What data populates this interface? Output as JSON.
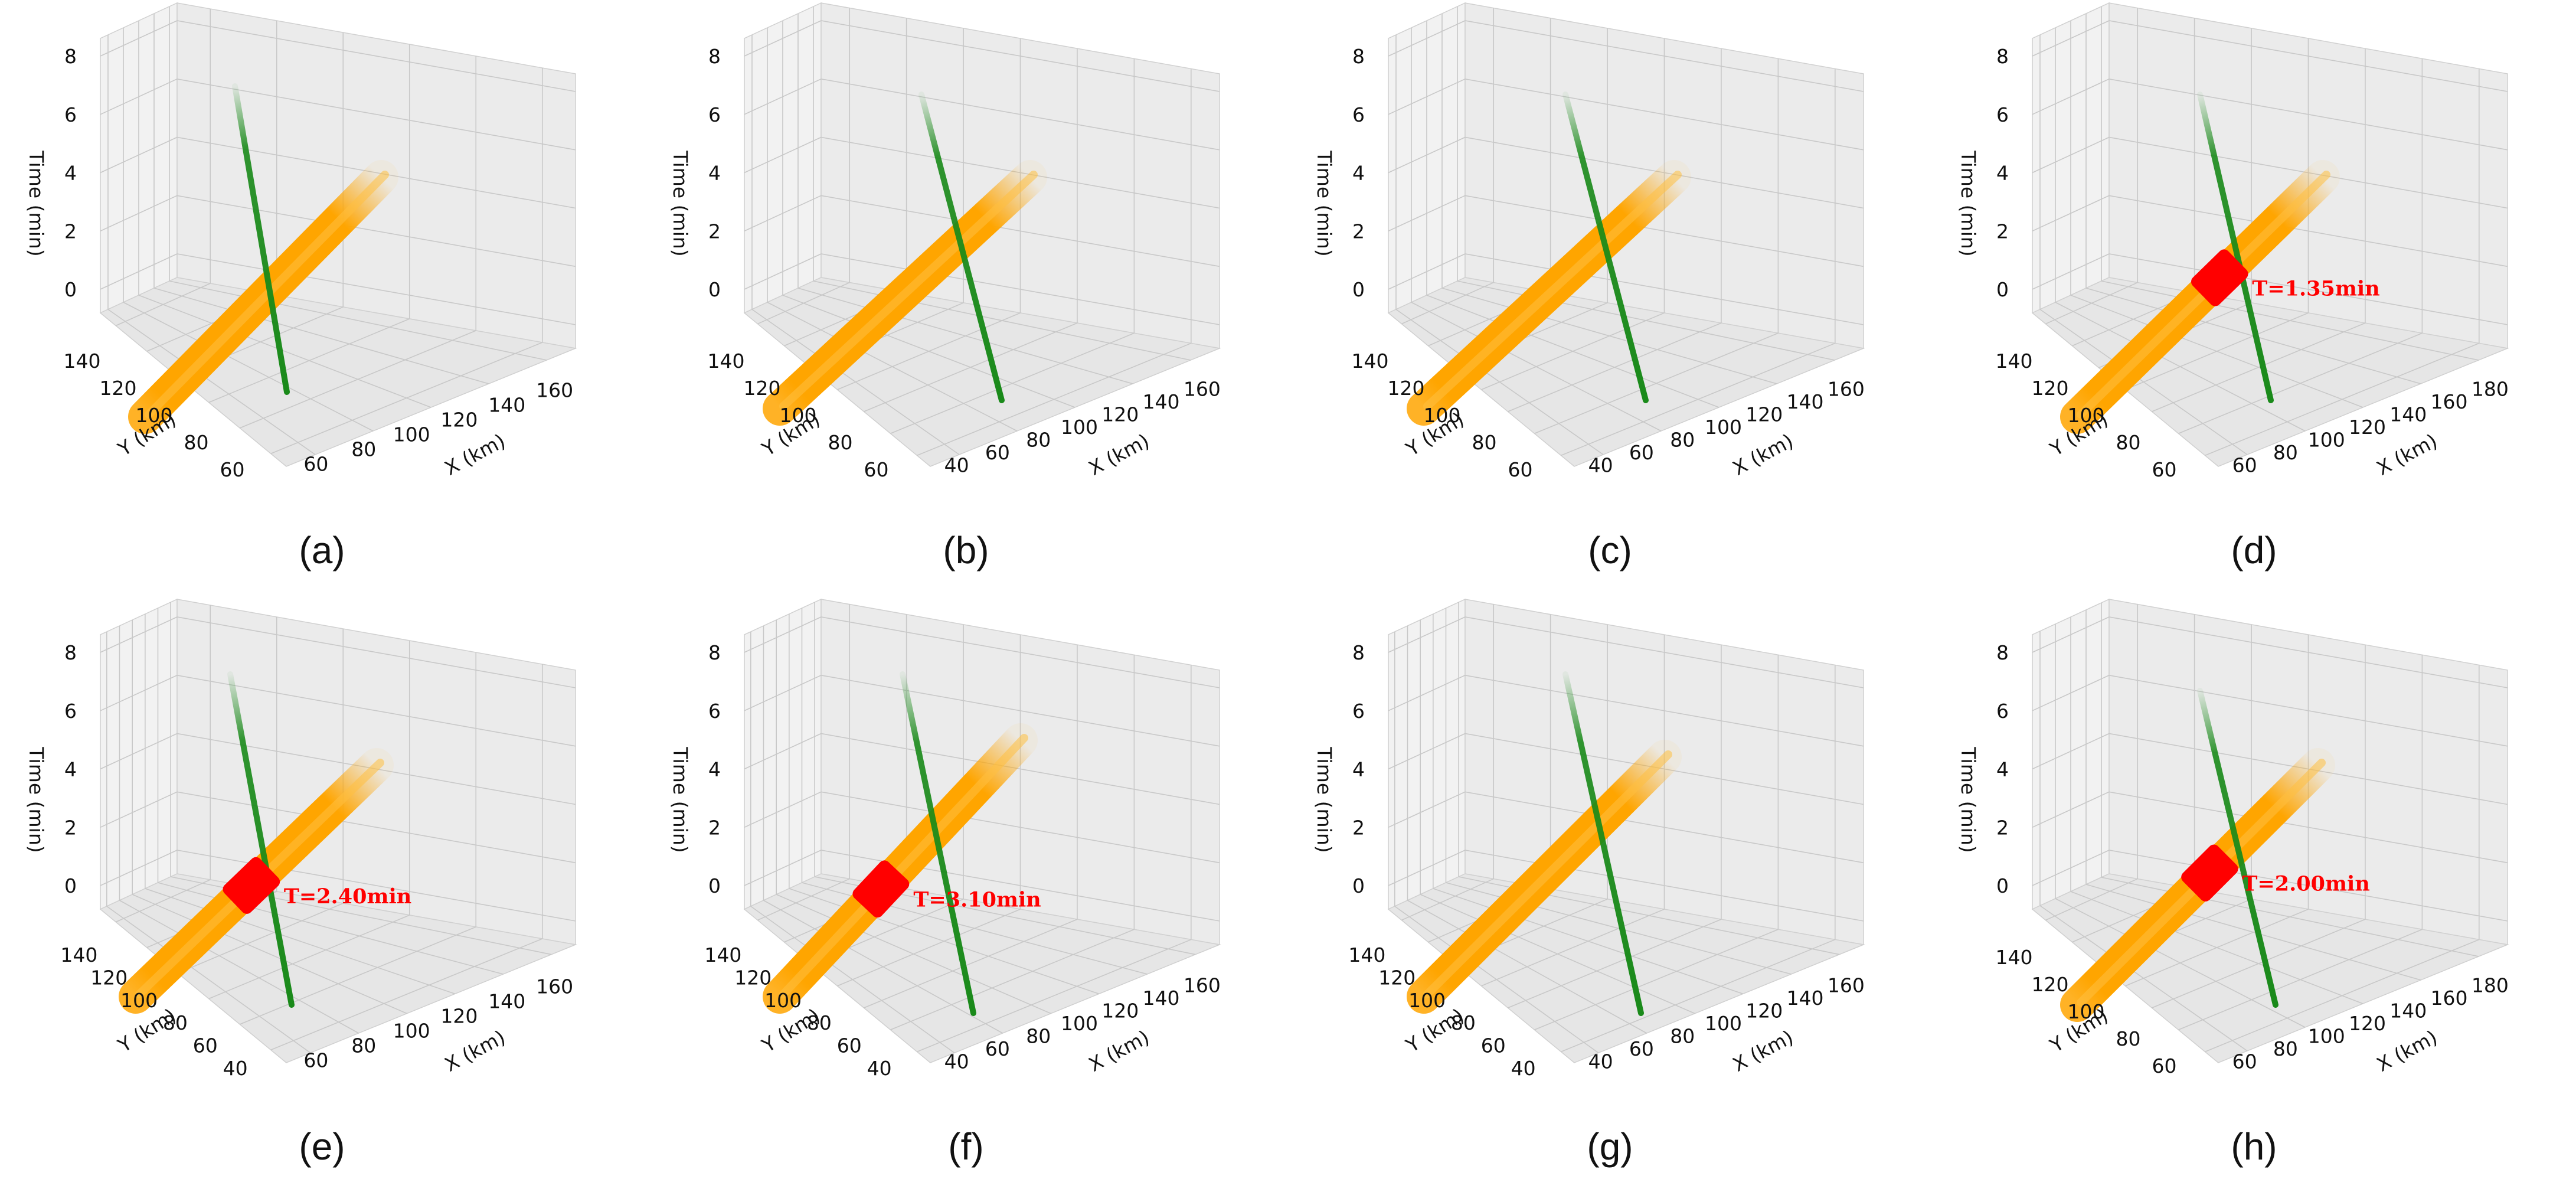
{
  "figure": {
    "title": ""
  },
  "chart_data": [
    {
      "id": "a",
      "type": "3d-trajectory",
      "caption": "(a)",
      "xlabel": "X (km)",
      "ylabel": "Y (km)",
      "zlabel": "Time (min)",
      "xticks": [
        "60",
        "80",
        "100",
        "120",
        "140",
        "160"
      ],
      "yticks": [
        "60",
        "80",
        "100",
        "120",
        "140"
      ],
      "zticks": [
        "0",
        "2",
        "4",
        "6",
        "8"
      ],
      "xlim": [
        50,
        170
      ],
      "ylim": [
        50,
        150
      ],
      "zlim": [
        0,
        8
      ],
      "series": [
        {
          "name": "orange-track",
          "color": "#FFA500",
          "kind": "tube",
          "x0": 0.12,
          "y0": 0.88,
          "x1": 0.62,
          "y1": 0.3
        },
        {
          "name": "green-track",
          "color": "#1a8a1a",
          "kind": "line",
          "x0": 0.31,
          "y0": 0.08,
          "x1": 0.42,
          "y1": 0.82
        }
      ],
      "collision": null
    },
    {
      "id": "b",
      "type": "3d-trajectory",
      "caption": "(b)",
      "xlabel": "X (km)",
      "ylabel": "Y (km)",
      "zlabel": "Time (min)",
      "xticks": [
        "40",
        "60",
        "80",
        "100",
        "120",
        "140",
        "160"
      ],
      "yticks": [
        "60",
        "80",
        "100",
        "120",
        "140"
      ],
      "zticks": [
        "0",
        "2",
        "4",
        "6",
        "8"
      ],
      "xlim": [
        30,
        170
      ],
      "ylim": [
        50,
        150
      ],
      "zlim": [
        0,
        8
      ],
      "series": [
        {
          "name": "orange-track",
          "color": "#FFA500",
          "kind": "tube",
          "x0": 0.1,
          "y0": 0.86,
          "x1": 0.63,
          "y1": 0.3
        },
        {
          "name": "green-track",
          "color": "#1a8a1a",
          "kind": "line",
          "x0": 0.4,
          "y0": 0.1,
          "x1": 0.57,
          "y1": 0.84
        }
      ],
      "collision": null
    },
    {
      "id": "c",
      "type": "3d-trajectory",
      "caption": "(c)",
      "xlabel": "X (km)",
      "ylabel": "Y (km)",
      "zlabel": "Time (min)",
      "xticks": [
        "40",
        "60",
        "80",
        "100",
        "120",
        "140",
        "160"
      ],
      "yticks": [
        "60",
        "80",
        "100",
        "120",
        "140"
      ],
      "zticks": [
        "0",
        "2",
        "4",
        "6",
        "8"
      ],
      "xlim": [
        30,
        170
      ],
      "ylim": [
        50,
        150
      ],
      "zlim": [
        0,
        8
      ],
      "series": [
        {
          "name": "orange-track",
          "color": "#FFA500",
          "kind": "tube",
          "x0": 0.1,
          "y0": 0.86,
          "x1": 0.63,
          "y1": 0.3
        },
        {
          "name": "green-track",
          "color": "#1a8a1a",
          "kind": "line",
          "x0": 0.4,
          "y0": 0.1,
          "x1": 0.57,
          "y1": 0.84
        }
      ],
      "collision": null
    },
    {
      "id": "d",
      "type": "3d-trajectory",
      "caption": "(d)",
      "xlabel": "X (km)",
      "ylabel": "Y (km)",
      "zlabel": "Time (min)",
      "xticks": [
        "60",
        "80",
        "100",
        "120",
        "140",
        "160",
        "180"
      ],
      "yticks": [
        "60",
        "80",
        "100",
        "120",
        "140"
      ],
      "zticks": [
        "0",
        "2",
        "4",
        "6",
        "8"
      ],
      "xlim": [
        50,
        190
      ],
      "ylim": [
        50,
        150
      ],
      "zlim": [
        0,
        8
      ],
      "series": [
        {
          "name": "orange-track",
          "color": "#FFA500",
          "kind": "tube",
          "x0": 0.12,
          "y0": 0.88,
          "x1": 0.64,
          "y1": 0.3
        },
        {
          "name": "green-track",
          "color": "#1a8a1a",
          "kind": "line",
          "x0": 0.38,
          "y0": 0.1,
          "x1": 0.53,
          "y1": 0.84
        }
      ],
      "collision": {
        "label": "T=1.35min",
        "time_min": 1.35,
        "color": "#ff0000",
        "t": 0.58
      }
    },
    {
      "id": "e",
      "type": "3d-trajectory",
      "caption": "(e)",
      "xlabel": "X (km)",
      "ylabel": "Y (km)",
      "zlabel": "Time (min)",
      "xticks": [
        "60",
        "80",
        "100",
        "120",
        "140",
        "160"
      ],
      "yticks": [
        "40",
        "60",
        "80",
        "100",
        "120",
        "140"
      ],
      "zticks": [
        "0",
        "2",
        "4",
        "6",
        "8"
      ],
      "xlim": [
        50,
        170
      ],
      "ylim": [
        30,
        150
      ],
      "zlim": [
        0,
        8
      ],
      "series": [
        {
          "name": "orange-track",
          "color": "#FFA500",
          "kind": "tube",
          "x0": 0.1,
          "y0": 0.84,
          "x1": 0.61,
          "y1": 0.28
        },
        {
          "name": "green-track",
          "color": "#1a8a1a",
          "kind": "line",
          "x0": 0.3,
          "y0": 0.06,
          "x1": 0.43,
          "y1": 0.86
        }
      ],
      "collision": {
        "label": "T=2.40min",
        "time_min": 2.4,
        "color": "#ff0000",
        "t": 0.48
      }
    },
    {
      "id": "f",
      "type": "3d-trajectory",
      "caption": "(f)",
      "xlabel": "X (km)",
      "ylabel": "Y (km)",
      "zlabel": "Time (min)",
      "xticks": [
        "40",
        "60",
        "80",
        "100",
        "120",
        "140",
        "160"
      ],
      "yticks": [
        "40",
        "60",
        "80",
        "100",
        "120",
        "140"
      ],
      "zticks": [
        "0",
        "2",
        "4",
        "6",
        "8"
      ],
      "xlim": [
        30,
        170
      ],
      "ylim": [
        30,
        150
      ],
      "zlim": [
        0,
        8
      ],
      "series": [
        {
          "name": "orange-track",
          "color": "#FFA500",
          "kind": "tube",
          "x0": 0.1,
          "y0": 0.84,
          "x1": 0.61,
          "y1": 0.22
        },
        {
          "name": "green-track",
          "color": "#1a8a1a",
          "kind": "line",
          "x0": 0.36,
          "y0": 0.06,
          "x1": 0.51,
          "y1": 0.88
        }
      ],
      "collision": {
        "label": "T=3.10min",
        "time_min": 3.1,
        "color": "#ff0000",
        "t": 0.42
      }
    },
    {
      "id": "g",
      "type": "3d-trajectory",
      "caption": "(g)",
      "xlabel": "X (km)",
      "ylabel": "Y (km)",
      "zlabel": "Time (min)",
      "xticks": [
        "40",
        "60",
        "80",
        "100",
        "120",
        "140",
        "160"
      ],
      "yticks": [
        "40",
        "60",
        "80",
        "100",
        "120",
        "140"
      ],
      "zticks": [
        "0",
        "2",
        "4",
        "6",
        "8"
      ],
      "xlim": [
        30,
        170
      ],
      "ylim": [
        30,
        150
      ],
      "zlim": [
        0,
        8
      ],
      "series": [
        {
          "name": "orange-track",
          "color": "#FFA500",
          "kind": "tube",
          "x0": 0.1,
          "y0": 0.84,
          "x1": 0.61,
          "y1": 0.26
        },
        {
          "name": "green-track",
          "color": "#1a8a1a",
          "kind": "line",
          "x0": 0.4,
          "y0": 0.06,
          "x1": 0.56,
          "y1": 0.88
        }
      ],
      "collision": null
    },
    {
      "id": "h",
      "type": "3d-trajectory",
      "caption": "(h)",
      "xlabel": "X (km)",
      "ylabel": "Y (km)",
      "zlabel": "Time (min)",
      "xticks": [
        "60",
        "80",
        "100",
        "120",
        "140",
        "160",
        "180"
      ],
      "yticks": [
        "60",
        "80",
        "100",
        "120",
        "140"
      ],
      "zticks": [
        "0",
        "2",
        "4",
        "6",
        "8"
      ],
      "xlim": [
        50,
        190
      ],
      "ylim": [
        50,
        150
      ],
      "zlim": [
        0,
        8
      ],
      "series": [
        {
          "name": "orange-track",
          "color": "#FFA500",
          "kind": "tube",
          "x0": 0.12,
          "y0": 0.86,
          "x1": 0.63,
          "y1": 0.28
        },
        {
          "name": "green-track",
          "color": "#1a8a1a",
          "kind": "line",
          "x0": 0.38,
          "y0": 0.1,
          "x1": 0.54,
          "y1": 0.86
        }
      ],
      "collision": {
        "label": "T=2.00min",
        "time_min": 2.0,
        "color": "#ff0000",
        "t": 0.55
      }
    }
  ]
}
